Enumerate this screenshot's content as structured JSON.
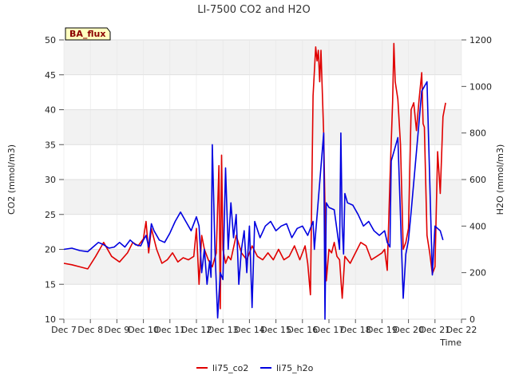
{
  "chart_data": {
    "type": "line",
    "title": "LI-7500 CO2 and H2O",
    "xlabel": "Time",
    "ylabel_left": "CO2 (mmol/m3)",
    "ylabel_right": "H2O (mmol/m3)",
    "xlim": [
      7,
      22
    ],
    "ylim_left": [
      10,
      50
    ],
    "ylim_right": [
      0,
      1200
    ],
    "x_ticks": [
      7,
      8,
      9,
      10,
      11,
      12,
      13,
      14,
      15,
      16,
      17,
      18,
      19,
      20,
      21,
      22
    ],
    "x_tick_labels": [
      "Dec 7",
      "Dec 8",
      "Dec 9",
      "Dec 10",
      "Dec 11",
      "Dec 12",
      "Dec 13",
      "Dec 14",
      "Dec 15",
      "Dec 16",
      "Dec 17",
      "Dec 18",
      "Dec 19",
      "Dec 20",
      "Dec 21",
      "Dec 22"
    ],
    "y_left_ticks": [
      10,
      15,
      20,
      25,
      30,
      35,
      40,
      45,
      50
    ],
    "y_right_ticks": [
      0,
      200,
      400,
      600,
      800,
      1000,
      1200
    ],
    "grid": true,
    "legend_position": "bottom-center",
    "series": [
      {
        "name": "li75_co2",
        "axis": "left",
        "color": "#e00000",
        "x": [
          7.0,
          7.3,
          7.6,
          7.9,
          8.2,
          8.5,
          8.8,
          9.1,
          9.4,
          9.6,
          9.8,
          10.0,
          10.1,
          10.2,
          10.3,
          10.5,
          10.7,
          10.9,
          11.1,
          11.3,
          11.5,
          11.7,
          11.9,
          12.0,
          12.1,
          12.2,
          12.3,
          12.45,
          12.6,
          12.75,
          12.85,
          12.9,
          12.95,
          13.0,
          13.1,
          13.2,
          13.3,
          13.5,
          13.7,
          13.9,
          14.1,
          14.3,
          14.5,
          14.7,
          14.9,
          15.1,
          15.3,
          15.5,
          15.7,
          15.9,
          16.0,
          16.1,
          16.2,
          16.3,
          16.4,
          16.5,
          16.55,
          16.6,
          16.65,
          16.7,
          16.8,
          16.9,
          17.0,
          17.1,
          17.2,
          17.3,
          17.4,
          17.5,
          17.6,
          17.8,
          18.0,
          18.2,
          18.4,
          18.6,
          18.8,
          19.0,
          19.1,
          19.2,
          19.3,
          19.4,
          19.45,
          19.5,
          19.6,
          19.7,
          19.8,
          19.9,
          20.0,
          20.1,
          20.2,
          20.3,
          20.4,
          20.5,
          20.55,
          20.6,
          20.7,
          20.8,
          20.9,
          21.0,
          21.1,
          21.2,
          21.3,
          21.4
        ],
        "values": [
          18.0,
          17.8,
          17.5,
          17.2,
          19.0,
          21.0,
          19.0,
          18.2,
          19.5,
          21.0,
          20.5,
          21.5,
          24.0,
          19.5,
          23.0,
          20.0,
          18.0,
          18.5,
          19.5,
          18.2,
          18.8,
          18.5,
          19.0,
          23.0,
          15.0,
          22.0,
          20.0,
          18.5,
          17.5,
          19.5,
          32.0,
          11.5,
          33.5,
          20.0,
          18.0,
          19.0,
          18.5,
          22.0,
          19.5,
          18.5,
          20.5,
          19.0,
          18.5,
          19.5,
          18.5,
          20.0,
          18.5,
          19.0,
          20.5,
          18.5,
          19.5,
          20.5,
          18.0,
          13.5,
          42.0,
          49.0,
          47.0,
          48.5,
          44.0,
          48.5,
          36.5,
          15.5,
          20.0,
          19.5,
          21.0,
          19.0,
          18.5,
          13.0,
          19.0,
          18.0,
          19.5,
          21.0,
          20.5,
          18.5,
          19.0,
          19.5,
          20.0,
          17.0,
          30.0,
          41.0,
          49.5,
          44.0,
          41.5,
          35.0,
          20.0,
          21.0,
          23.0,
          40.0,
          41.0,
          37.0,
          41.5,
          45.3,
          38.0,
          37.5,
          22.0,
          19.5,
          16.5,
          17.5,
          34.0,
          28.0,
          39.0,
          41.0
        ]
      },
      {
        "name": "li75_h2o",
        "axis": "right",
        "color": "#0000e0",
        "x": [
          7.0,
          7.3,
          7.6,
          7.9,
          8.1,
          8.3,
          8.5,
          8.7,
          8.9,
          9.1,
          9.3,
          9.5,
          9.7,
          9.9,
          10.0,
          10.1,
          10.2,
          10.3,
          10.4,
          10.6,
          10.8,
          11.0,
          11.2,
          11.4,
          11.6,
          11.8,
          12.0,
          12.1,
          12.2,
          12.3,
          12.4,
          12.5,
          12.55,
          12.6,
          12.7,
          12.8,
          12.9,
          13.0,
          13.1,
          13.2,
          13.3,
          13.4,
          13.5,
          13.6,
          13.7,
          13.8,
          13.9,
          14.0,
          14.1,
          14.2,
          14.4,
          14.6,
          14.8,
          15.0,
          15.2,
          15.4,
          15.6,
          15.8,
          16.0,
          16.2,
          16.4,
          16.45,
          16.8,
          16.85,
          16.9,
          17.0,
          17.2,
          17.4,
          17.45,
          17.5,
          17.55,
          17.6,
          17.7,
          17.9,
          18.1,
          18.3,
          18.5,
          18.7,
          18.9,
          19.1,
          19.2,
          19.3,
          19.35,
          19.4,
          19.5,
          19.6,
          19.8,
          19.9,
          20.0,
          20.1,
          20.3,
          20.5,
          20.7,
          20.9,
          21.0,
          21.1,
          21.2,
          21.3
        ],
        "values": [
          300,
          305,
          295,
          290,
          310,
          330,
          320,
          305,
          310,
          330,
          310,
          340,
          320,
          315,
          340,
          360,
          310,
          410,
          380,
          340,
          330,
          370,
          420,
          460,
          420,
          380,
          440,
          400,
          200,
          300,
          150,
          250,
          180,
          750,
          300,
          5,
          200,
          170,
          650,
          300,
          500,
          350,
          450,
          150,
          300,
          380,
          200,
          400,
          50,
          420,
          350,
          400,
          420,
          380,
          400,
          410,
          350,
          390,
          400,
          360,
          420,
          300,
          800,
          0,
          500,
          480,
          470,
          300,
          800,
          400,
          280,
          540,
          500,
          490,
          450,
          400,
          420,
          380,
          360,
          380,
          330,
          310,
          680,
          700,
          740,
          780,
          90,
          280,
          340,
          460,
          720,
          980,
          1020,
          190,
          400,
          390,
          380,
          340
        ]
      }
    ]
  },
  "badge": {
    "label": "BA_flux"
  },
  "legend": [
    {
      "label": "li75_co2",
      "color": "#e00000"
    },
    {
      "label": "li75_h2o",
      "color": "#0000e0"
    }
  ]
}
